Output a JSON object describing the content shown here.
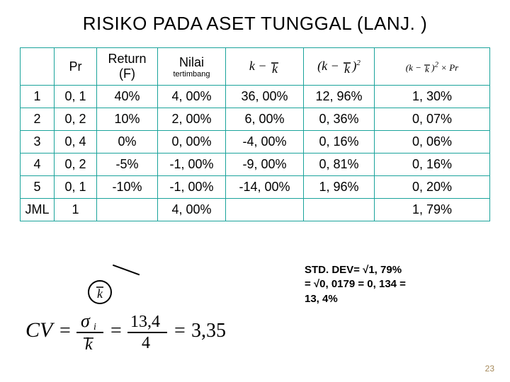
{
  "title": "RISIKO PADA ASET TUNGGAL (LANJ. )",
  "page_number": "23",
  "headers": {
    "col1": "",
    "col2": "Pr",
    "col3_top": "Return",
    "col3_bot": "(F)",
    "col4_top": "Nilai",
    "col4_bot": "tertimbang"
  },
  "rows": [
    {
      "n": "1",
      "pr": "0, 1",
      "ret": "40%",
      "wt": "4, 00%",
      "d": "36, 00%",
      "d2": "12, 96%",
      "d2p": "1, 30%"
    },
    {
      "n": "2",
      "pr": "0, 2",
      "ret": "10%",
      "wt": "2, 00%",
      "d": "6, 00%",
      "d2": "0, 36%",
      "d2p": "0, 07%"
    },
    {
      "n": "3",
      "pr": "0, 4",
      "ret": "0%",
      "wt": "0, 00%",
      "d": "-4, 00%",
      "d2": "0, 16%",
      "d2p": "0, 06%"
    },
    {
      "n": "4",
      "pr": "0, 2",
      "ret": "-5%",
      "wt": "-1, 00%",
      "d": "-9, 00%",
      "d2": "0, 81%",
      "d2p": "0, 16%"
    },
    {
      "n": "5",
      "pr": "0, 1",
      "ret": "-10%",
      "wt": "-1, 00%",
      "d": "-14, 00%",
      "d2": "1, 96%",
      "d2p": "0, 20%"
    }
  ],
  "jml": {
    "n": "JML",
    "pr": "1",
    "ret": "",
    "wt": "4, 00%",
    "d": "",
    "d2": "",
    "d2p": "1, 79%"
  },
  "stddev": {
    "l1": "STD. DEV= √1, 79%",
    "l2": "= √0, 0179 =  0, 134 =",
    "l3": "13, 4%"
  },
  "style": {
    "border_color": "#1aa39b",
    "title_fontsize": 26,
    "body_fontsize": 18,
    "bg": "#ffffff"
  }
}
